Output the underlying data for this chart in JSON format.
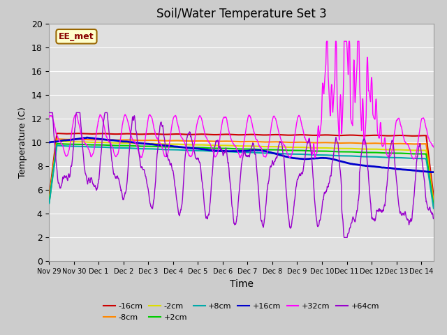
{
  "title": "Soil/Water Temperature Set 3",
  "xlabel": "Time",
  "ylabel": "Temperature (C)",
  "ylim": [
    0,
    20
  ],
  "yticks": [
    0,
    2,
    4,
    6,
    8,
    10,
    12,
    14,
    16,
    18,
    20
  ],
  "xtick_labels": [
    "Nov 29",
    "Nov 30",
    "Dec 1",
    "Dec 2",
    "Dec 3",
    "Dec 4",
    "Dec 5",
    "Dec 6",
    "Dec 7",
    "Dec 8",
    "Dec 9",
    "Dec 10",
    "Dec 11",
    "Dec 12",
    "Dec 13",
    "Dec 14"
  ],
  "annotation_text": "EE_met",
  "annotation_bg": "#ffffcc",
  "annotation_border": "#996600",
  "fig_bg": "#cccccc",
  "plot_bg": "#e0e0e0",
  "grid_color": "#ffffff",
  "series": [
    {
      "label": "-16cm",
      "color": "#cc0000",
      "lw": 1.5
    },
    {
      "label": "-8cm",
      "color": "#ff8800",
      "lw": 1.5
    },
    {
      "label": "-2cm",
      "color": "#dddd00",
      "lw": 1.5
    },
    {
      "label": "+2cm",
      "color": "#00cc00",
      "lw": 1.5
    },
    {
      "label": "+8cm",
      "color": "#00aaaa",
      "lw": 1.5
    },
    {
      "label": "+16cm",
      "color": "#0000cc",
      "lw": 2.0
    },
    {
      "label": "+32cm",
      "color": "#ff00ff",
      "lw": 1.0
    },
    {
      "label": "+64cm",
      "color": "#9900cc",
      "lw": 1.0
    }
  ],
  "legend_row1": [
    "-16cm",
    "-8cm",
    "-2cm",
    "+2cm",
    "+8cm",
    "+16cm"
  ],
  "legend_row2": [
    "+32cm",
    "+64cm"
  ]
}
